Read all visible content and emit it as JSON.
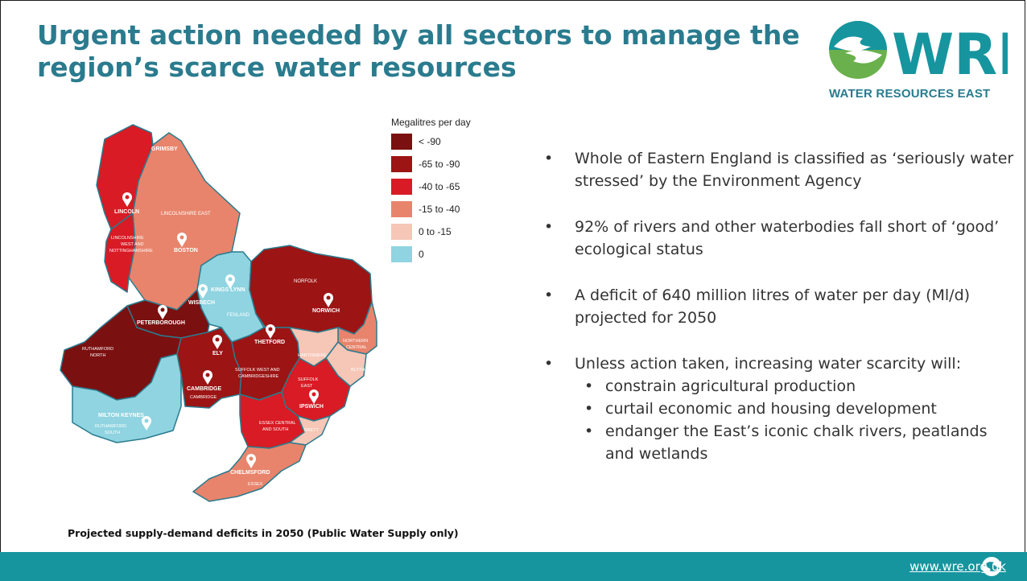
{
  "title": {
    "line1": "Urgent action needed by all sectors to manage the",
    "line2": "region’s scarce water resources"
  },
  "logo": {
    "text": "WRE",
    "subtitle": "WATER RESOURCES EAST",
    "icon": "wave-hands-icon"
  },
  "legend": {
    "title": "Megalitres per day",
    "items": [
      {
        "label": "< -90",
        "color": "#7b1010"
      },
      {
        "label": "-65 to -90",
        "color": "#9c1414"
      },
      {
        "label": "-40 to -65",
        "color": "#d81b24"
      },
      {
        "label": "-15 to -40",
        "color": "#e8846c"
      },
      {
        "label": "0 to -15",
        "color": "#f6c6b6"
      },
      {
        "label": "0",
        "color": "#8fd4e0"
      }
    ]
  },
  "map": {
    "zone_labels": {
      "grimsby": "GRIMSBY",
      "lincoln": "LINCOLN",
      "lincolnshire_east": "LINCOLNSHIRE EAST",
      "lincs_west_1": "LINCOLNSHIRE",
      "lincs_west_2": "WEST AND",
      "lincs_west_3": "NOTTINGHAMSHIRE",
      "boston": "BOSTON",
      "kings_lynn": "KINGS LYNN",
      "wisbech": "WISBECH",
      "fenland": "FENLAND",
      "norfolk": "NORFOLK",
      "norwich": "NORWICH",
      "peterborough": "PETERBOROUGH",
      "thetford": "THETFORD",
      "northern_central_1": "NORTHERN",
      "northern_central_2": "CENTRAL",
      "ruthamford_north_1": "RUTHAMFORD",
      "ruthamford_north_2": "NORTH",
      "ely": "ELY",
      "hartismere": "HARTISMERE",
      "blyth": "BLYTH",
      "suffolk_west_1": "SUFFOLK WEST AND",
      "suffolk_west_2": "CAMBRIDGESHIRE",
      "suffolk_east_1": "SUFFOLK",
      "suffolk_east_2": "EAST",
      "cambridge_town": "CAMBRIDGE",
      "cambridge_zone": "CAMBRIDGE",
      "ipswich": "IPSWICH",
      "milton_keynes": "MILTON KEYNES",
      "ruthamford_south_1": "RUTHAMFORD",
      "ruthamford_south_2": "SOUTH",
      "essex_central_1": "ESSEX CENTRAL",
      "essex_central_2": "AND SOUTH",
      "brett": "BRETT",
      "chelmsford": "CHELMSFORD",
      "essex": "ESSEX"
    }
  },
  "bullets": [
    "Whole of Eastern England is classified as ‘seriously water stressed’ by the Environment Agency",
    "92% of rivers and other waterbodies fall short of ‘good’ ecological status",
    "A deficit of 640 million litres of water per day (Ml/d) projected for 2050",
    "Unless action taken, increasing water scarcity will:"
  ],
  "sub_bullets": [
    "constrain agricultural production",
    "curtail economic and housing development",
    "endanger the East’s iconic chalk rivers, peatlands and wetlands"
  ],
  "bullet_char": "•",
  "caption": "Projected supply-demand deficits in 2050 (Public Water Supply only)",
  "footer": {
    "link": "www.wre.org.uk",
    "color": "#16959f"
  }
}
